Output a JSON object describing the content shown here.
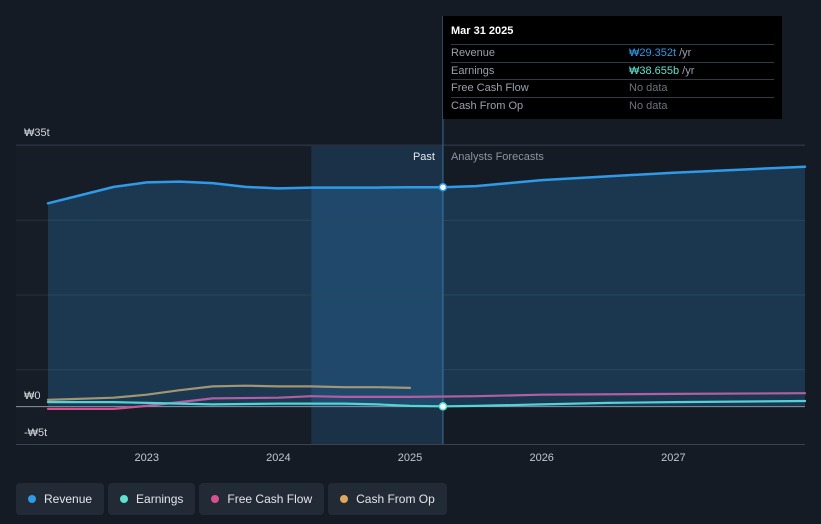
{
  "tooltip": {
    "date": "Mar 31 2025",
    "rows": [
      {
        "label": "Revenue",
        "value": "₩29.352t",
        "unit": "/yr",
        "color": "#2f9be8"
      },
      {
        "label": "Earnings",
        "value": "₩38.655b",
        "unit": "/yr",
        "color": "#5ee3d0"
      },
      {
        "label": "Free Cash Flow",
        "value": "No data",
        "unit": "",
        "color": "#6d737c"
      },
      {
        "label": "Cash From Op",
        "value": "No data",
        "unit": "",
        "color": "#6d737c"
      }
    ]
  },
  "legend": [
    {
      "label": "Revenue",
      "color": "#2f9be8"
    },
    {
      "label": "Earnings",
      "color": "#5ee3d0"
    },
    {
      "label": "Free Cash Flow",
      "color": "#d64f8f"
    },
    {
      "label": "Cash From Op",
      "color": "#e0a95a"
    }
  ],
  "chart_data": {
    "type": "line",
    "y_axis_labels": {
      "top": "₩35t",
      "zero": "₩0",
      "bottom": "-₩5t"
    },
    "ylim": [
      -5,
      35
    ],
    "xlim": [
      2022.25,
      2028.0
    ],
    "x_ticks": [
      {
        "value": 2023,
        "label": "2023"
      },
      {
        "value": 2024,
        "label": "2024"
      },
      {
        "value": 2025,
        "label": "2025"
      },
      {
        "value": 2026,
        "label": "2026"
      },
      {
        "value": 2027,
        "label": "2027"
      }
    ],
    "past_label": "Past",
    "forecast_label": "Analysts Forecasts",
    "divider_x": 2025.25,
    "highlight_start": 2024.25,
    "series": [
      {
        "name": "Revenue",
        "color": "#2f9be8",
        "x": [
          2022.25,
          2022.5,
          2022.75,
          2023.0,
          2023.25,
          2023.5,
          2023.75,
          2024.0,
          2024.25,
          2024.5,
          2024.75,
          2025.0,
          2025.25,
          2025.5,
          2025.75,
          2026.0,
          2026.5,
          2027.0,
          2027.5,
          2028.0
        ],
        "values": [
          27.2,
          28.3,
          29.4,
          30.0,
          30.1,
          29.9,
          29.4,
          29.2,
          29.3,
          29.3,
          29.3,
          29.35,
          29.352,
          29.5,
          29.9,
          30.3,
          30.8,
          31.3,
          31.7,
          32.1
        ]
      },
      {
        "name": "Earnings",
        "color": "#5ee3d0",
        "x": [
          2022.25,
          2022.75,
          2023.0,
          2023.5,
          2024.0,
          2024.5,
          2024.75,
          2025.0,
          2025.25,
          2025.5,
          2026.0,
          2026.5,
          2027.0,
          2028.0
        ],
        "values": [
          0.6,
          0.6,
          0.5,
          0.3,
          0.4,
          0.4,
          0.3,
          0.1,
          0.039,
          0.1,
          0.3,
          0.5,
          0.6,
          0.75
        ]
      },
      {
        "name": "Free Cash Flow",
        "color": "#d64f8f",
        "x": [
          2022.25,
          2022.75,
          2023.0,
          2023.25,
          2023.5,
          2024.0,
          2024.25,
          2024.5,
          2024.75,
          2025.0,
          2025.5,
          2026.0,
          2027.0,
          2028.0
        ],
        "values": [
          -0.3,
          -0.3,
          0.1,
          0.6,
          1.1,
          1.2,
          1.4,
          1.3,
          1.3,
          1.3,
          1.4,
          1.6,
          1.7,
          1.8
        ]
      },
      {
        "name": "Cash From Op",
        "color": "#e0a95a",
        "x": [
          2022.25,
          2022.75,
          2023.0,
          2023.25,
          2023.5,
          2023.75,
          2024.0,
          2024.25,
          2024.5,
          2024.75,
          2025.0
        ],
        "values": [
          0.9,
          1.2,
          1.6,
          2.2,
          2.7,
          2.8,
          2.7,
          2.7,
          2.6,
          2.6,
          2.5
        ]
      }
    ],
    "markers": [
      {
        "series": "Revenue",
        "x": 2025.25,
        "y": 29.352
      },
      {
        "series": "Earnings",
        "x": 2025.25,
        "y": 0.039
      }
    ]
  }
}
